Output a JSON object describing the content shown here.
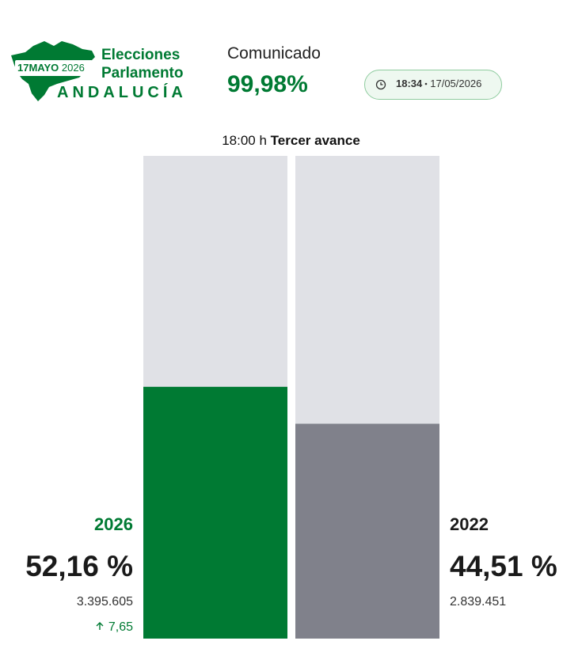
{
  "logo": {
    "badge_day_month": "17MAYO",
    "badge_year": "2026",
    "line1": "Elecciones",
    "line2": "Parlamento",
    "region": "ANDALUCÍA"
  },
  "status": {
    "label": "Comunicado",
    "value": "99,98%"
  },
  "update": {
    "time": "18:34",
    "date": "17/05/2026"
  },
  "chart_data": {
    "type": "bar",
    "subtitle": "18:00 h",
    "title": "Tercer avance",
    "categories": [
      "2026",
      "2022"
    ],
    "values": [
      52.16,
      44.51
    ],
    "value_labels": [
      "52,16 %",
      "44,51 %"
    ],
    "colors": [
      "#007a33",
      "#80818b"
    ],
    "label_colors": [
      "#007a33",
      "#1a1a1a"
    ],
    "track_color": "#e0e1e6",
    "ylim": [
      0,
      100
    ],
    "votes": [
      "3.395.605",
      "2.839.451"
    ],
    "change": "7,65"
  }
}
